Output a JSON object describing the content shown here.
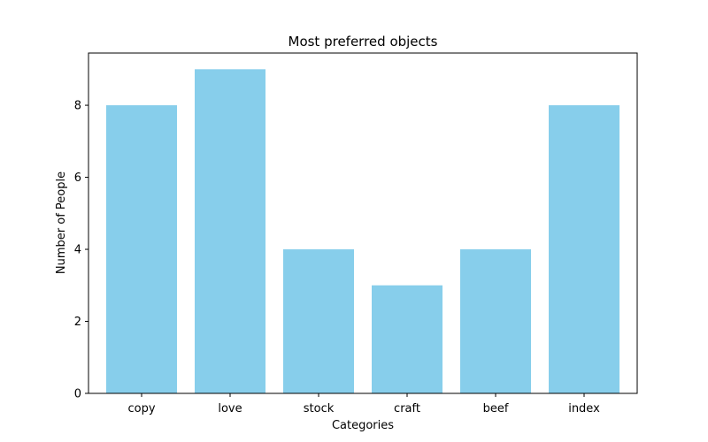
{
  "chart_data": {
    "type": "bar",
    "title": "Most preferred objects",
    "xlabel": "Categories",
    "ylabel": "Number of People",
    "categories": [
      "copy",
      "love",
      "stock",
      "craft",
      "beef",
      "index"
    ],
    "values": [
      8,
      9,
      4,
      3,
      4,
      8
    ],
    "ylim": [
      0,
      9.45
    ],
    "yticks": [
      0,
      2,
      4,
      6,
      8
    ],
    "bar_color": "#87ceeb",
    "grid": false,
    "legend": "none"
  }
}
